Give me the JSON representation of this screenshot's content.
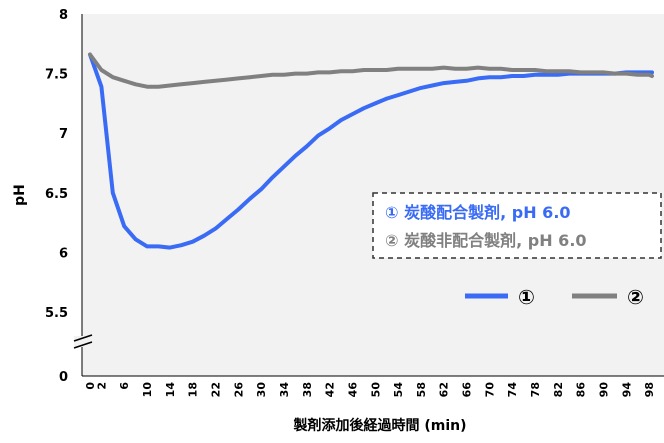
{
  "chart_data": {
    "type": "line",
    "xlabel": "製剤添加後経過時間 (min)",
    "ylabel": "pH",
    "y_ticks": [
      "0",
      "5.5",
      "6",
      "6.5",
      "7",
      "7.5",
      "8"
    ],
    "y_axis_break": true,
    "ylim": [
      5.5,
      8
    ],
    "x_ticks": [
      "0",
      "2",
      "6",
      "10",
      "14",
      "18",
      "22",
      "26",
      "30",
      "34",
      "38",
      "42",
      "46",
      "50",
      "54",
      "58",
      "62",
      "66",
      "70",
      "74",
      "78",
      "82",
      "86",
      "90",
      "94",
      "98"
    ],
    "grid": false,
    "series": [
      {
        "name": "①",
        "color": "#3a6bf5",
        "x": [
          0,
          2,
          4,
          6,
          8,
          10,
          12,
          14,
          16,
          18,
          20,
          22,
          24,
          26,
          28,
          30,
          32,
          34,
          36,
          38,
          40,
          42,
          44,
          46,
          48,
          50,
          52,
          54,
          56,
          58,
          60,
          62,
          64,
          66,
          68,
          70,
          72,
          74,
          76,
          78,
          80,
          82,
          84,
          86,
          88,
          90,
          92,
          94,
          96,
          98,
          100
        ],
        "y": [
          7.66,
          7.39,
          6.5,
          6.22,
          6.11,
          6.05,
          6.05,
          6.04,
          6.06,
          6.09,
          6.14,
          6.2,
          6.28,
          6.36,
          6.45,
          6.53,
          6.63,
          6.72,
          6.81,
          6.89,
          6.98,
          7.04,
          7.11,
          7.16,
          7.21,
          7.25,
          7.29,
          7.32,
          7.35,
          7.38,
          7.4,
          7.42,
          7.43,
          7.44,
          7.46,
          7.47,
          7.47,
          7.48,
          7.48,
          7.49,
          7.49,
          7.49,
          7.5,
          7.5,
          7.5,
          7.5,
          7.5,
          7.51,
          7.51,
          7.51,
          7.51
        ]
      },
      {
        "name": "②",
        "color": "#808080",
        "x": [
          0,
          2,
          4,
          6,
          8,
          10,
          12,
          14,
          16,
          18,
          20,
          22,
          24,
          26,
          28,
          30,
          32,
          34,
          36,
          38,
          40,
          42,
          44,
          46,
          48,
          50,
          52,
          54,
          56,
          58,
          60,
          62,
          64,
          66,
          68,
          70,
          72,
          74,
          76,
          78,
          80,
          82,
          84,
          86,
          88,
          90,
          92,
          94,
          96,
          98,
          100
        ],
        "y": [
          7.66,
          7.53,
          7.47,
          7.44,
          7.41,
          7.39,
          7.39,
          7.4,
          7.41,
          7.42,
          7.43,
          7.44,
          7.45,
          7.46,
          7.47,
          7.48,
          7.49,
          7.49,
          7.5,
          7.5,
          7.51,
          7.51,
          7.52,
          7.52,
          7.53,
          7.53,
          7.53,
          7.54,
          7.54,
          7.54,
          7.54,
          7.55,
          7.54,
          7.54,
          7.55,
          7.54,
          7.54,
          7.53,
          7.53,
          7.53,
          7.52,
          7.52,
          7.52,
          7.51,
          7.51,
          7.51,
          7.5,
          7.5,
          7.49,
          7.49,
          7.48
        ]
      }
    ],
    "annotation_box": {
      "lines": [
        {
          "text": "① 炭酸配合製剤, pH 6.0",
          "color": "#3a6bf5"
        },
        {
          "text": "② 炭酸非配合製剤, pH 6.0",
          "color": "#808080"
        }
      ]
    },
    "legend": {
      "placement": "bottom-right",
      "items": [
        {
          "label": "①",
          "color": "#3a6bf5"
        },
        {
          "label": "②",
          "color": "#808080"
        }
      ]
    }
  }
}
